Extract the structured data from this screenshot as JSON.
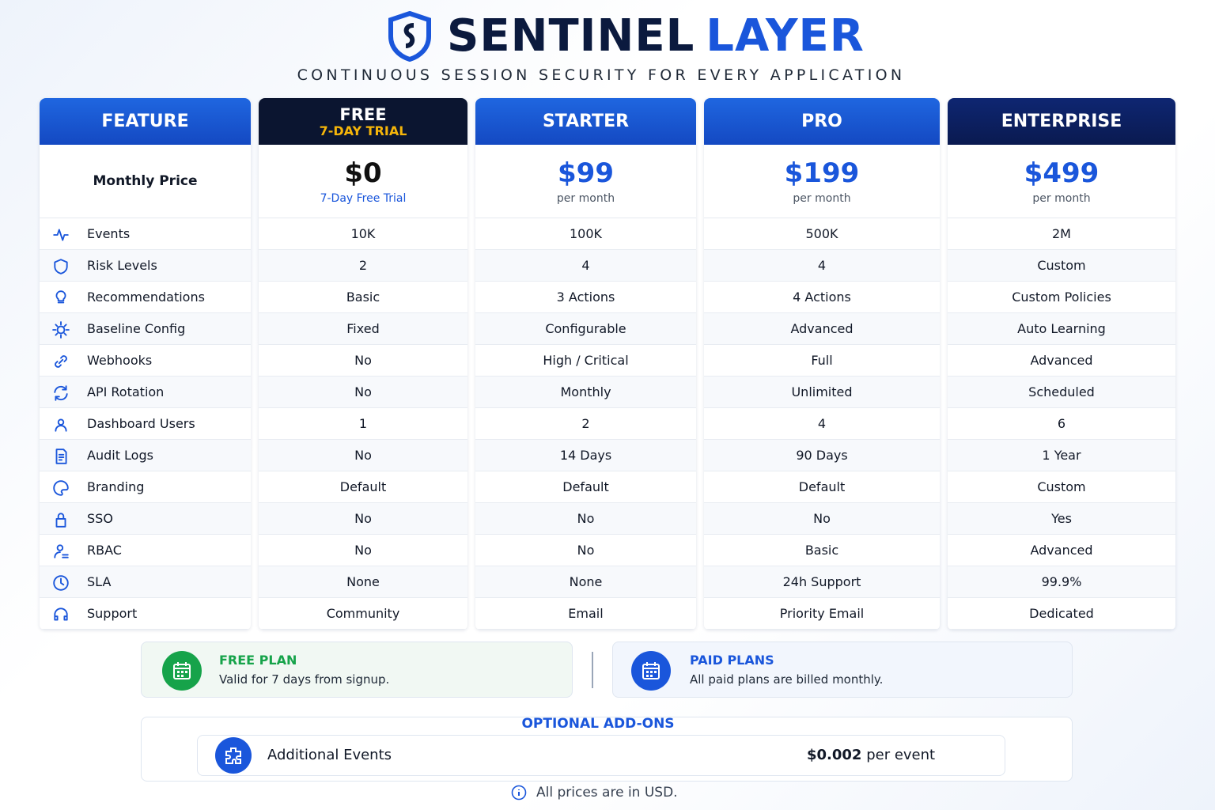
{
  "header": {
    "brand_1": "SENTINEL",
    "brand_2": "LAYER",
    "tagline": "CONTINUOUS SESSION SECURITY FOR EVERY APPLICATION"
  },
  "table": {
    "columns": [
      {
        "name": "FEATURE"
      },
      {
        "name": "FREE",
        "sub": "7-DAY TRIAL"
      },
      {
        "name": "STARTER"
      },
      {
        "name": "PRO"
      },
      {
        "name": "ENTERPRISE"
      }
    ],
    "price_label": "Monthly Price",
    "prices": [
      {
        "amount": "$0",
        "note": "7-Day Free Trial"
      },
      {
        "amount": "$99",
        "note": "per month"
      },
      {
        "amount": "$199",
        "note": "per month"
      },
      {
        "amount": "$499",
        "note": "per month"
      }
    ],
    "rows": [
      [
        "Events",
        "10K",
        "100K",
        "500K",
        "2M"
      ],
      [
        "Risk Levels",
        "2",
        "4",
        "4",
        "Custom"
      ],
      [
        "Recommendations",
        "Basic",
        "3 Actions",
        "4 Actions",
        "Custom Policies"
      ],
      [
        "Baseline Config",
        "Fixed",
        "Configurable",
        "Advanced",
        "Auto Learning"
      ],
      [
        "Webhooks",
        "No",
        "High / Critical",
        "Full",
        "Advanced"
      ],
      [
        "API Rotation",
        "No",
        "Monthly",
        "Unlimited",
        "Scheduled"
      ],
      [
        "Dashboard Users",
        "1",
        "2",
        "4",
        "6"
      ],
      [
        "Audit Logs",
        "No",
        "14 Days",
        "90 Days",
        "1 Year"
      ],
      [
        "Branding",
        "Default",
        "Default",
        "Default",
        "Custom"
      ],
      [
        "SSO",
        "No",
        "No",
        "No",
        "Yes"
      ],
      [
        "RBAC",
        "No",
        "No",
        "Basic",
        "Advanced"
      ],
      [
        "SLA",
        "None",
        "None",
        "24h Support",
        "99.9%"
      ],
      [
        "Support",
        "Community",
        "Email",
        "Priority Email",
        "Dedicated"
      ]
    ]
  },
  "notes": [
    {
      "title": "FREE PLAN",
      "text": "Valid for 7 days from signup."
    },
    {
      "title": "PAID PLANS",
      "text": "All paid plans are billed monthly."
    }
  ],
  "addons": {
    "title": "OPTIONAL ADD-ONS",
    "items": [
      {
        "name": "Additional Events",
        "price": "$0.002",
        "unit": "per event"
      }
    ]
  },
  "footer": "All prices are in USD."
}
